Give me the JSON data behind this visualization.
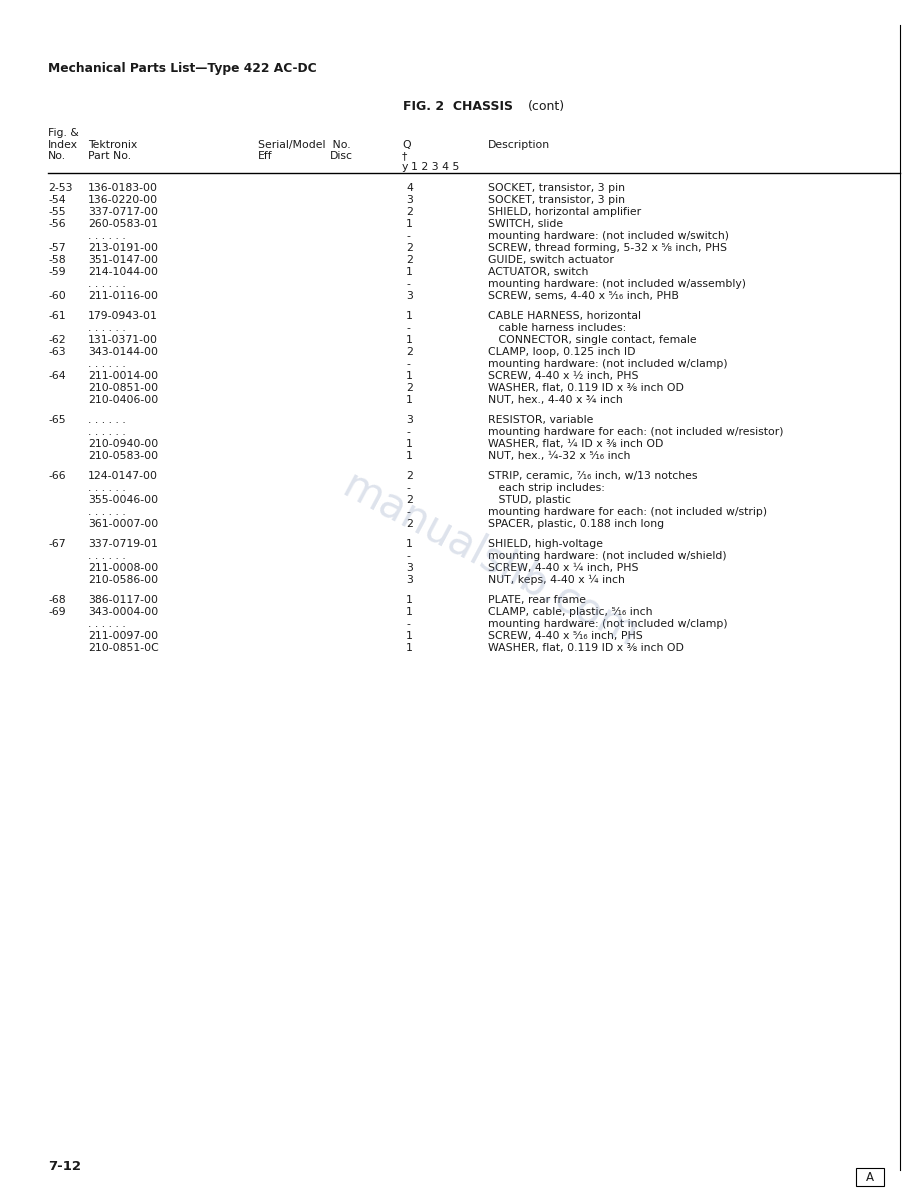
{
  "page_header": "Mechanical Parts List—Type 422 AC-DC",
  "fig_title": "FIG. 2  CHASSIS  (cont)",
  "bg_color": "#ffffff",
  "text_color": "#1a1a1a",
  "font_size": 7.8,
  "rows": [
    {
      "fig": "2-53",
      "part": "136-0183-00",
      "qty": "4",
      "desc": "SOCKET, transistor, 3 pin",
      "blank": false
    },
    {
      "fig": "-54",
      "part": "136-0220-00",
      "qty": "3",
      "desc": "SOCKET, transistor, 3 pin",
      "blank": false
    },
    {
      "fig": "-55",
      "part": "337-0717-00",
      "qty": "2",
      "desc": "SHIELD, horizontal amplifier",
      "blank": false
    },
    {
      "fig": "-56",
      "part": "260-0583-01",
      "qty": "1",
      "desc": "SWITCH, slide",
      "blank": false
    },
    {
      "fig": "",
      "part": ". . . . . .",
      "qty": "-",
      "desc": "mounting hardware: (not included w/switch)",
      "blank": false
    },
    {
      "fig": "-57",
      "part": "213-0191-00",
      "qty": "2",
      "desc": "SCREW, thread forming, 5-32 x ⁵⁄₈ inch, PHS",
      "blank": false
    },
    {
      "fig": "-58",
      "part": "351-0147-00",
      "qty": "2",
      "desc": "GUIDE, switch actuator",
      "blank": false
    },
    {
      "fig": "-59",
      "part": "214-1044-00",
      "qty": "1",
      "desc": "ACTUATOR, switch",
      "blank": false
    },
    {
      "fig": "",
      "part": ". . . . . .",
      "qty": "-",
      "desc": "mounting hardware: (not included w/assembly)",
      "blank": false
    },
    {
      "fig": "-60",
      "part": "211-0116-00",
      "qty": "3",
      "desc": "SCREW, sems, 4-40 x ⁵⁄₁₆ inch, PHB",
      "blank": false
    },
    {
      "fig": "",
      "part": "",
      "qty": "",
      "desc": "",
      "blank": true
    },
    {
      "fig": "-61",
      "part": "179-0943-01",
      "qty": "1",
      "desc": "CABLE HARNESS, horizontal",
      "blank": false
    },
    {
      "fig": "",
      "part": ". . . . . .",
      "qty": "-",
      "desc": "   cable harness includes:",
      "blank": false
    },
    {
      "fig": "-62",
      "part": "131-0371-00",
      "qty": "1",
      "desc": "   CONNECTOR, single contact, female",
      "blank": false
    },
    {
      "fig": "-63",
      "part": "343-0144-00",
      "qty": "2",
      "desc": "CLAMP, loop, 0.125 inch ID",
      "blank": false
    },
    {
      "fig": "",
      "part": ". . . . . .",
      "qty": "-",
      "desc": "mounting hardware: (not included w/clamp)",
      "blank": false
    },
    {
      "fig": "-64",
      "part": "211-0014-00",
      "qty": "1",
      "desc": "SCREW, 4-40 x ½ inch, PHS",
      "blank": false
    },
    {
      "fig": "",
      "part": "210-0851-00",
      "qty": "2",
      "desc": "WASHER, flat, 0.119 ID x ⅜ inch OD",
      "blank": false
    },
    {
      "fig": "",
      "part": "210-0406-00",
      "qty": "1",
      "desc": "NUT, hex., 4-40 x ¾ inch",
      "blank": false
    },
    {
      "fig": "",
      "part": "",
      "qty": "",
      "desc": "",
      "blank": true
    },
    {
      "fig": "-65",
      "part": ". . . . . .",
      "qty": "3",
      "desc": "RESISTOR, variable",
      "blank": false
    },
    {
      "fig": "",
      "part": ". . . . . .",
      "qty": "-",
      "desc": "mounting hardware for each: (not included w/resistor)",
      "blank": false
    },
    {
      "fig": "",
      "part": "210-0940-00",
      "qty": "1",
      "desc": "WASHER, flat, ¼ ID x ⅜ inch OD",
      "blank": false
    },
    {
      "fig": "",
      "part": "210-0583-00",
      "qty": "1",
      "desc": "NUT, hex., ¼-32 x ⁵⁄₁₆ inch",
      "blank": false
    },
    {
      "fig": "",
      "part": "",
      "qty": "",
      "desc": "",
      "blank": true
    },
    {
      "fig": "-66",
      "part": "124-0147-00",
      "qty": "2",
      "desc": "STRIP, ceramic, ⁷⁄₁₆ inch, w/13 notches",
      "blank": false
    },
    {
      "fig": "",
      "part": ". . . . . .",
      "qty": "-",
      "desc": "   each strip includes:",
      "blank": false
    },
    {
      "fig": "",
      "part": "355-0046-00",
      "qty": "2",
      "desc": "   STUD, plastic",
      "blank": false
    },
    {
      "fig": "",
      "part": ". . . . . .",
      "qty": "-",
      "desc": "mounting hardware for each: (not included w/strip)",
      "blank": false
    },
    {
      "fig": "",
      "part": "361-0007-00",
      "qty": "2",
      "desc": "SPACER, plastic, 0.188 inch long",
      "blank": false
    },
    {
      "fig": "",
      "part": "",
      "qty": "",
      "desc": "",
      "blank": true
    },
    {
      "fig": "-67",
      "part": "337-0719-01",
      "qty": "1",
      "desc": "SHIELD, high-voltage",
      "blank": false
    },
    {
      "fig": "",
      "part": ". . . . . .",
      "qty": "-",
      "desc": "mounting hardware: (not included w/shield)",
      "blank": false
    },
    {
      "fig": "",
      "part": "211-0008-00",
      "qty": "3",
      "desc": "SCREW, 4-40 x ¼ inch, PHS",
      "blank": false
    },
    {
      "fig": "",
      "part": "210-0586-00",
      "qty": "3",
      "desc": "NUT, keps, 4-40 x ¼ inch",
      "blank": false
    },
    {
      "fig": "",
      "part": "",
      "qty": "",
      "desc": "",
      "blank": true
    },
    {
      "fig": "-68",
      "part": "386-0117-00",
      "qty": "1",
      "desc": "PLATE, rear frame",
      "blank": false
    },
    {
      "fig": "-69",
      "part": "343-0004-00",
      "qty": "1",
      "desc": "CLAMP, cable, plastic, ⁵⁄₁₆ inch",
      "blank": false
    },
    {
      "fig": "",
      "part": ". . . . . .",
      "qty": "-",
      "desc": "mounting hardware: (not included w/clamp)",
      "blank": false
    },
    {
      "fig": "",
      "part": "211-0097-00",
      "qty": "1",
      "desc": "SCREW, 4-40 x ⁵⁄₁₆ inch, PHS",
      "blank": false
    },
    {
      "fig": "",
      "part": "210-0851-0C",
      "qty": "1",
      "desc": "WASHER, flat, 0.119 ID x ⅜ inch OD",
      "blank": false
    }
  ],
  "footer_left": "7-12",
  "footer_right": "A"
}
